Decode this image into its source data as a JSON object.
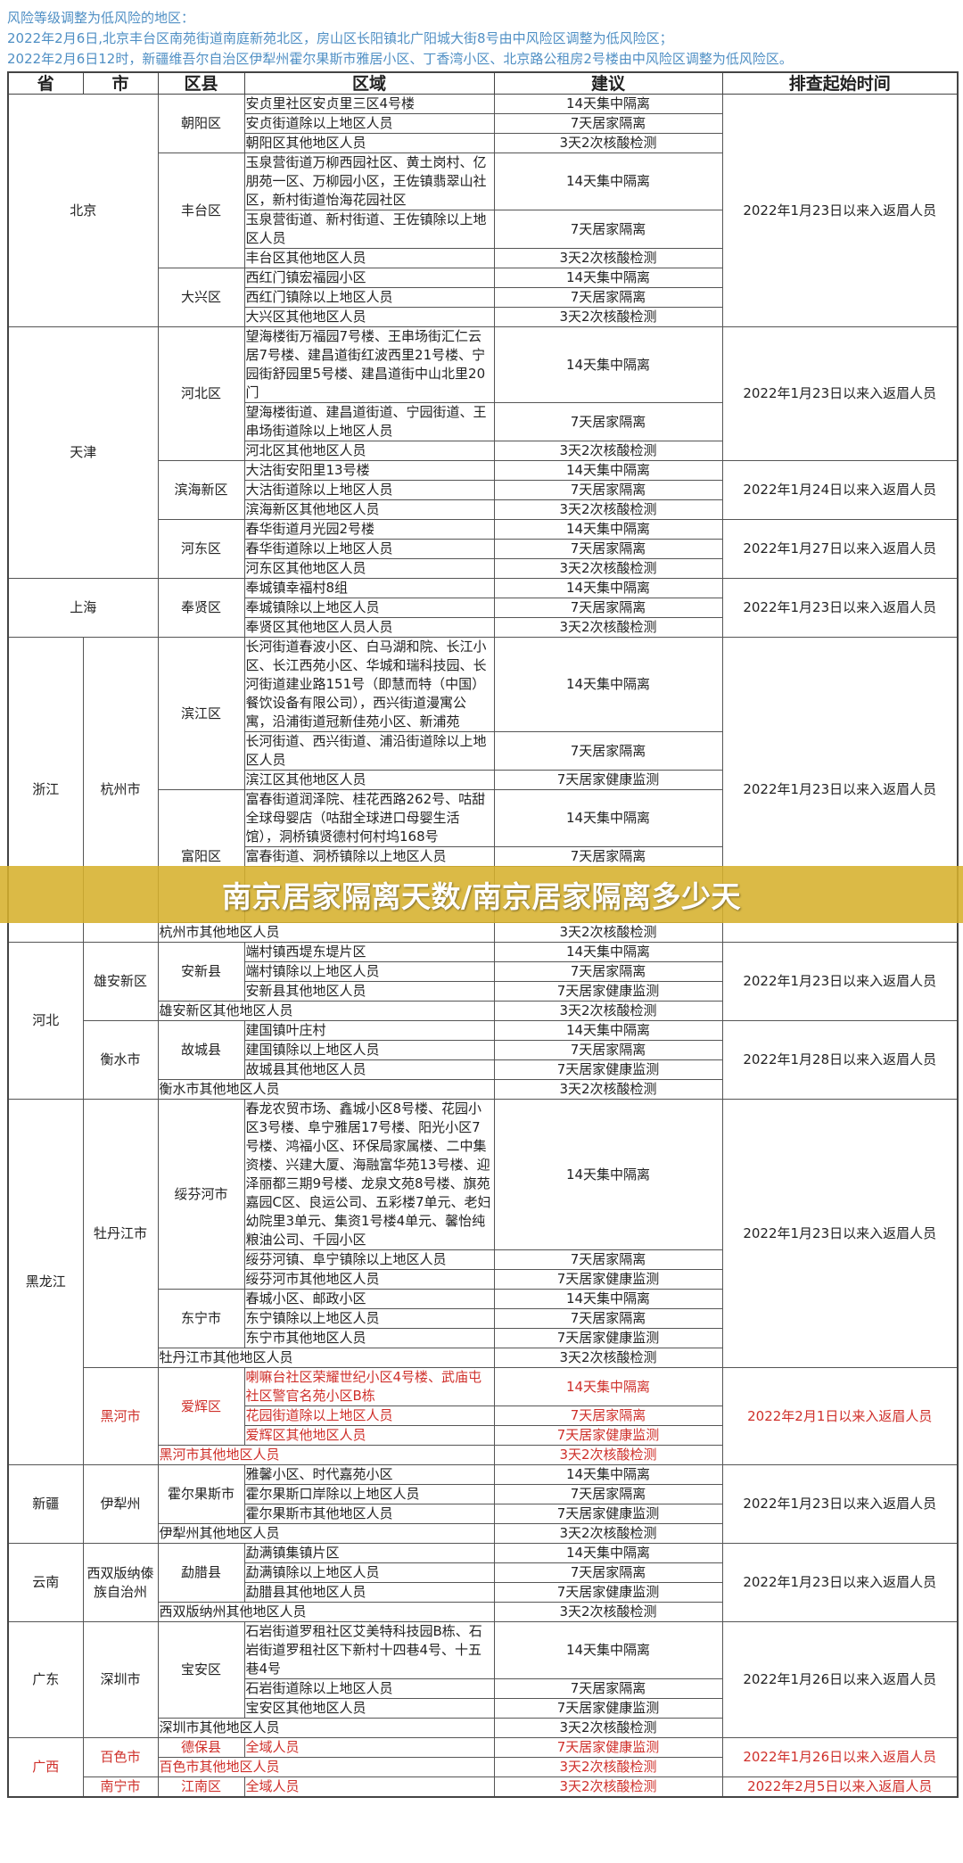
{
  "notice": {
    "lines": [
      "风险等级调整为低风险的地区：",
      "2022年2月6日,北京丰台区南苑街道南庭新苑北区，房山区长阳镇北广阳城大街8号由中风险区调整为低风险区；",
      "2022年2月6日12时，新疆维吾尔自治区伊犁州霍尔果斯市雅居小区、丁香湾小区、北京路公租房2号楼由中风险区调整为低风险区。"
    ]
  },
  "banner": {
    "title": "南京居家隔离天数/南京居家隔离多少天"
  },
  "colors": {
    "notice": "#4f8fc4",
    "red": "#cf2f2a",
    "banner": "#d6b02c"
  },
  "table": {
    "headers": [
      "省",
      "市",
      "区县",
      "区域",
      "建议",
      "排查起始时间"
    ],
    "rows": [
      {
        "cells": [
          {
            "t": "北京",
            "k": "prov",
            "rs": 9,
            "cs": 2
          },
          {
            "t": "朝阳区",
            "k": "dist",
            "rs": 3
          },
          {
            "t": "安贞里社区安贞里三区4号楼",
            "k": "area"
          },
          {
            "t": "14天集中隔离",
            "k": "adv"
          },
          {
            "t": "2022年1月23日以来入返眉人员",
            "k": "time",
            "rs": 9
          }
        ]
      },
      {
        "cells": [
          {
            "t": "安贞街道除以上地区人员",
            "k": "area"
          },
          {
            "t": "7天居家隔离",
            "k": "adv"
          }
        ]
      },
      {
        "cells": [
          {
            "t": "朝阳区其他地区人员",
            "k": "area"
          },
          {
            "t": "3天2次核酸检测",
            "k": "adv"
          }
        ]
      },
      {
        "cells": [
          {
            "t": "丰台区",
            "k": "dist",
            "rs": 3
          },
          {
            "t": "玉泉营街道万柳西园社区、黄土岗村、亿朋苑一区、万柳园小区，王佐镇翡翠山社区，新村街道怡海花园社区",
            "k": "area"
          },
          {
            "t": "14天集中隔离",
            "k": "adv"
          }
        ]
      },
      {
        "cells": [
          {
            "t": "玉泉营街道、新村街道、王佐镇除以上地区人员",
            "k": "area"
          },
          {
            "t": "7天居家隔离",
            "k": "adv"
          }
        ]
      },
      {
        "cells": [
          {
            "t": "丰台区其他地区人员",
            "k": "area"
          },
          {
            "t": "3天2次核酸检测",
            "k": "adv"
          }
        ]
      },
      {
        "cells": [
          {
            "t": "大兴区",
            "k": "dist",
            "rs": 3
          },
          {
            "t": "西红门镇宏福园小区",
            "k": "area"
          },
          {
            "t": "14天集中隔离",
            "k": "adv"
          }
        ]
      },
      {
        "cells": [
          {
            "t": "西红门镇除以上地区人员",
            "k": "area"
          },
          {
            "t": "7天居家隔离",
            "k": "adv"
          }
        ]
      },
      {
        "cells": [
          {
            "t": "大兴区其他地区人员",
            "k": "area"
          },
          {
            "t": "3天2次核酸检测",
            "k": "adv"
          }
        ]
      },
      {
        "cells": [
          {
            "t": "天津",
            "k": "prov",
            "rs": 9,
            "cs": 2
          },
          {
            "t": "河北区",
            "k": "dist",
            "rs": 3
          },
          {
            "t": "望海楼街万福园7号楼、王串场街汇仁云居7号楼、建昌道街红波西里21号楼、宁园街舒园里5号楼、建昌道街中山北里20门",
            "k": "area"
          },
          {
            "t": "14天集中隔离",
            "k": "adv"
          },
          {
            "t": "2022年1月23日以来入返眉人员",
            "k": "time",
            "rs": 3
          }
        ]
      },
      {
        "cells": [
          {
            "t": "望海楼街道、建昌道街道、宁园街道、王串场街道除以上地区人员",
            "k": "area"
          },
          {
            "t": "7天居家隔离",
            "k": "adv"
          }
        ]
      },
      {
        "cells": [
          {
            "t": "河北区其他地区人员",
            "k": "area"
          },
          {
            "t": "3天2次核酸检测",
            "k": "adv"
          }
        ]
      },
      {
        "cells": [
          {
            "t": "滨海新区",
            "k": "dist",
            "rs": 3
          },
          {
            "t": "大沽街安阳里13号楼",
            "k": "area"
          },
          {
            "t": "14天集中隔离",
            "k": "adv"
          },
          {
            "t": "2022年1月24日以来入返眉人员",
            "k": "time",
            "rs": 3
          }
        ]
      },
      {
        "cells": [
          {
            "t": "大沽街道除以上地区人员",
            "k": "area"
          },
          {
            "t": "7天居家隔离",
            "k": "adv"
          }
        ]
      },
      {
        "cells": [
          {
            "t": "滨海新区其他地区人员",
            "k": "area"
          },
          {
            "t": "3天2次核酸检测",
            "k": "adv"
          }
        ]
      },
      {
        "cells": [
          {
            "t": "河东区",
            "k": "dist",
            "rs": 3
          },
          {
            "t": "春华街道月光园2号楼",
            "k": "area"
          },
          {
            "t": "14天集中隔离",
            "k": "adv"
          },
          {
            "t": "2022年1月27日以来入返眉人员",
            "k": "time",
            "rs": 3
          }
        ]
      },
      {
        "cells": [
          {
            "t": "春华街道除以上地区人员",
            "k": "area"
          },
          {
            "t": "7天居家隔离",
            "k": "adv"
          }
        ]
      },
      {
        "cells": [
          {
            "t": "河东区其他地区人员",
            "k": "area"
          },
          {
            "t": "3天2次核酸检测",
            "k": "adv"
          }
        ]
      },
      {
        "cells": [
          {
            "t": "上海",
            "k": "prov",
            "rs": 3,
            "cs": 2
          },
          {
            "t": "奉贤区",
            "k": "dist",
            "rs": 3
          },
          {
            "t": "奉城镇幸福村8组",
            "k": "area"
          },
          {
            "t": "14天集中隔离",
            "k": "adv"
          },
          {
            "t": "2022年1月23日以来入返眉人员",
            "k": "time",
            "rs": 3
          }
        ]
      },
      {
        "cells": [
          {
            "t": "奉城镇除以上地区人员",
            "k": "area"
          },
          {
            "t": "7天居家隔离",
            "k": "adv"
          }
        ]
      },
      {
        "cells": [
          {
            "t": "奉贤区其他地区人员人员",
            "k": "area"
          },
          {
            "t": "3天2次核酸检测",
            "k": "adv"
          }
        ]
      },
      {
        "cells": [
          {
            "t": "浙江",
            "k": "prov",
            "rs": 7
          },
          {
            "t": "杭州市",
            "k": "city",
            "rs": 7
          },
          {
            "t": "滨江区",
            "k": "dist",
            "rs": 3
          },
          {
            "t": "长河街道春波小区、白马湖和院、长江小区、长江西苑小区、华城和瑞科技园、长河街道建业路151号（即慧而特（中国）餐饮设备有限公司），西兴街道漫寓公寓，沿浦街道冠新佳苑小区、新浦苑",
            "k": "area"
          },
          {
            "t": "14天集中隔离",
            "k": "adv"
          },
          {
            "t": "2022年1月23日以来入返眉人员",
            "k": "time",
            "rs": 7
          }
        ]
      },
      {
        "cells": [
          {
            "t": "长河街道、西兴街道、浦沿街道除以上地区人员",
            "k": "area"
          },
          {
            "t": "7天居家隔离",
            "k": "adv"
          }
        ]
      },
      {
        "cells": [
          {
            "t": "滨江区其他地区人员",
            "k": "area"
          },
          {
            "t": "7天居家健康监测",
            "k": "adv"
          }
        ]
      },
      {
        "cells": [
          {
            "t": "富阳区",
            "k": "dist",
            "rs": 3
          },
          {
            "t": "富春街道润泽院、桂花西路262号、咕甜全球母婴店（咕甜全球进口母婴生活馆），洞桥镇贤德村何村坞168号",
            "k": "area"
          },
          {
            "t": "14天集中隔离",
            "k": "adv"
          }
        ]
      },
      {
        "cells": [
          {
            "t": "富春街道、洞桥镇除以上地区人员",
            "k": "area"
          },
          {
            "t": "7天居家隔离",
            "k": "adv"
          }
        ]
      },
      {
        "cells": [
          {
            "t": "",
            "k": "area"
          },
          {
            "t": "",
            "k": "adv"
          }
        ]
      },
      {
        "cells": [
          {
            "t": "杭州市其他地区人员",
            "k": "area",
            "cs": 2
          },
          {
            "t": "3天2次核酸检测",
            "k": "adv"
          }
        ]
      },
      {
        "cells": [
          {
            "t": "河北",
            "k": "prov",
            "rs": 8
          },
          {
            "t": "雄安新区",
            "k": "city",
            "rs": 4
          },
          {
            "t": "安新县",
            "k": "dist",
            "rs": 3
          },
          {
            "t": "端村镇西堤东堤片区",
            "k": "area"
          },
          {
            "t": "14天集中隔离",
            "k": "adv"
          },
          {
            "t": "2022年1月23日以来入返眉人员",
            "k": "time",
            "rs": 4
          }
        ]
      },
      {
        "cells": [
          {
            "t": "端村镇除以上地区人员",
            "k": "area"
          },
          {
            "t": "7天居家隔离",
            "k": "adv"
          }
        ]
      },
      {
        "cells": [
          {
            "t": "安新县其他地区人员",
            "k": "area"
          },
          {
            "t": "7天居家健康监测",
            "k": "adv"
          }
        ]
      },
      {
        "cells": [
          {
            "t": "雄安新区其他地区人员",
            "k": "area",
            "cs": 2
          },
          {
            "t": "3天2次核酸检测",
            "k": "adv"
          }
        ]
      },
      {
        "cells": [
          {
            "t": "衡水市",
            "k": "city",
            "rs": 4
          },
          {
            "t": "故城县",
            "k": "dist",
            "rs": 3
          },
          {
            "t": "建国镇叶庄村",
            "k": "area"
          },
          {
            "t": "14天集中隔离",
            "k": "adv"
          },
          {
            "t": "2022年1月28日以来入返眉人员",
            "k": "time",
            "rs": 4
          }
        ]
      },
      {
        "cells": [
          {
            "t": "建国镇除以上地区人员",
            "k": "area"
          },
          {
            "t": "7天居家隔离",
            "k": "adv"
          }
        ]
      },
      {
        "cells": [
          {
            "t": "故城县其他地区人员",
            "k": "area"
          },
          {
            "t": "7天居家健康监测",
            "k": "adv"
          }
        ]
      },
      {
        "cells": [
          {
            "t": "衡水市其他地区人员",
            "k": "area",
            "cs": 2
          },
          {
            "t": "3天2次核酸检测",
            "k": "adv"
          }
        ]
      },
      {
        "cells": [
          {
            "t": "黑龙江",
            "k": "prov",
            "rs": 11
          },
          {
            "t": "牡丹江市",
            "k": "city",
            "rs": 7
          },
          {
            "t": "绥芬河市",
            "k": "dist",
            "rs": 3
          },
          {
            "t": "春龙农贸市场、鑫城小区8号楼、花园小区3号楼、阜宁雅居17号楼、阳光小区7号楼、鸿福小区、环保局家属楼、二中集资楼、兴建大厦、海融富华苑13号楼、迎泽丽都三期9号楼、龙泉文苑8号楼、旗苑嘉园C区、良运公司、五彩楼7单元、老妇幼院里3单元、集资1号楼4单元、馨怡纯粮油公司、千园小区",
            "k": "area"
          },
          {
            "t": "14天集中隔离",
            "k": "adv"
          },
          {
            "t": "2022年1月23日以来入返眉人员",
            "k": "time",
            "rs": 7
          }
        ]
      },
      {
        "cells": [
          {
            "t": "绥芬河镇、阜宁镇除以上地区人员",
            "k": "area"
          },
          {
            "t": "7天居家隔离",
            "k": "adv"
          }
        ]
      },
      {
        "cells": [
          {
            "t": "绥芬河市其他地区人员",
            "k": "area"
          },
          {
            "t": "7天居家健康监测",
            "k": "adv"
          }
        ]
      },
      {
        "cells": [
          {
            "t": "东宁市",
            "k": "dist",
            "rs": 3
          },
          {
            "t": "春城小区、邮政小区",
            "k": "area"
          },
          {
            "t": "14天集中隔离",
            "k": "adv"
          }
        ]
      },
      {
        "cells": [
          {
            "t": "东宁镇除以上地区人员",
            "k": "area"
          },
          {
            "t": "7天居家隔离",
            "k": "adv"
          }
        ]
      },
      {
        "cells": [
          {
            "t": "东宁市其他地区人员",
            "k": "area"
          },
          {
            "t": "7天居家健康监测",
            "k": "adv"
          }
        ]
      },
      {
        "cells": [
          {
            "t": "牡丹江市其他地区人员",
            "k": "area",
            "cs": 2
          },
          {
            "t": "3天2次核酸检测",
            "k": "adv"
          }
        ]
      },
      {
        "red": true,
        "cells": [
          {
            "t": "黑河市",
            "k": "city",
            "rs": 4
          },
          {
            "t": "爱辉区",
            "k": "dist",
            "rs": 3
          },
          {
            "t": "喇嘛台社区荣耀世纪小区4号楼、武庙屯社区警官名苑小区B栋",
            "k": "area"
          },
          {
            "t": "14天集中隔离",
            "k": "adv"
          },
          {
            "t": "2022年2月1日以来入返眉人员",
            "k": "time",
            "rs": 4
          }
        ]
      },
      {
        "red": true,
        "cells": [
          {
            "t": "花园街道除以上地区人员",
            "k": "area"
          },
          {
            "t": "7天居家隔离",
            "k": "adv"
          }
        ]
      },
      {
        "red": true,
        "cells": [
          {
            "t": "爱辉区其他地区人员",
            "k": "area"
          },
          {
            "t": "7天居家健康监测",
            "k": "adv"
          }
        ]
      },
      {
        "red": true,
        "cells": [
          {
            "t": "黑河市其他地区人员",
            "k": "area",
            "cs": 2
          },
          {
            "t": "3天2次核酸检测",
            "k": "adv"
          }
        ]
      },
      {
        "cells": [
          {
            "t": "新疆",
            "k": "prov",
            "rs": 4
          },
          {
            "t": "伊犁州",
            "k": "city",
            "rs": 4
          },
          {
            "t": "霍尔果斯市",
            "k": "dist",
            "rs": 3
          },
          {
            "t": "雅馨小区、时代嘉苑小区",
            "k": "area"
          },
          {
            "t": "14天集中隔离",
            "k": "adv"
          },
          {
            "t": "2022年1月23日以来入返眉人员",
            "k": "time",
            "rs": 4
          }
        ]
      },
      {
        "cells": [
          {
            "t": "霍尔果斯口岸除以上地区人员",
            "k": "area"
          },
          {
            "t": "7天居家隔离",
            "k": "adv"
          }
        ]
      },
      {
        "cells": [
          {
            "t": "霍尔果斯市其他地区人员",
            "k": "area"
          },
          {
            "t": "7天居家健康监测",
            "k": "adv"
          }
        ]
      },
      {
        "cells": [
          {
            "t": "伊犁州其他地区人员",
            "k": "area",
            "cs": 2
          },
          {
            "t": "3天2次核酸检测",
            "k": "adv"
          }
        ]
      },
      {
        "cells": [
          {
            "t": "云南",
            "k": "prov",
            "rs": 4
          },
          {
            "t": "西双版纳傣族自治州",
            "k": "city",
            "rs": 4
          },
          {
            "t": "勐腊县",
            "k": "dist",
            "rs": 3
          },
          {
            "t": "勐满镇集镇片区",
            "k": "area"
          },
          {
            "t": "14天集中隔离",
            "k": "adv"
          },
          {
            "t": "2022年1月23日以来入返眉人员",
            "k": "time",
            "rs": 4
          }
        ]
      },
      {
        "cells": [
          {
            "t": "勐满镇除以上地区人员",
            "k": "area"
          },
          {
            "t": "7天居家隔离",
            "k": "adv"
          }
        ]
      },
      {
        "cells": [
          {
            "t": "勐腊县其他地区人员",
            "k": "area"
          },
          {
            "t": "7天居家健康监测",
            "k": "adv"
          }
        ]
      },
      {
        "cells": [
          {
            "t": "西双版纳州其他地区人员",
            "k": "area",
            "cs": 2
          },
          {
            "t": "3天2次核酸检测",
            "k": "adv"
          }
        ]
      },
      {
        "cells": [
          {
            "t": "广东",
            "k": "prov",
            "rs": 4
          },
          {
            "t": "深圳市",
            "k": "city",
            "rs": 4
          },
          {
            "t": "宝安区",
            "k": "dist",
            "rs": 3
          },
          {
            "t": "石岩街道罗租社区艾美特科技园B栋、石岩街道罗租社区下新村十四巷4号、十五巷4号",
            "k": "area"
          },
          {
            "t": "14天集中隔离",
            "k": "adv"
          },
          {
            "t": "2022年1月26日以来入返眉人员",
            "k": "time",
            "rs": 4
          }
        ]
      },
      {
        "cells": [
          {
            "t": "石岩街道除以上地区人员",
            "k": "area"
          },
          {
            "t": "7天居家隔离",
            "k": "adv"
          }
        ]
      },
      {
        "cells": [
          {
            "t": "宝安区其他地区人员",
            "k": "area"
          },
          {
            "t": "7天居家健康监测",
            "k": "adv"
          }
        ]
      },
      {
        "cells": [
          {
            "t": "深圳市其他地区人员",
            "k": "area",
            "cs": 2
          },
          {
            "t": "3天2次核酸检测",
            "k": "adv"
          }
        ]
      },
      {
        "red": true,
        "cells": [
          {
            "t": "广西",
            "k": "prov",
            "rs": 3
          },
          {
            "t": "百色市",
            "k": "city",
            "rs": 2
          },
          {
            "t": "德保县",
            "k": "dist"
          },
          {
            "t": "全域人员",
            "k": "area"
          },
          {
            "t": "7天居家健康监测",
            "k": "adv"
          },
          {
            "t": "2022年1月26日以来入返眉人员",
            "k": "time",
            "rs": 2
          }
        ]
      },
      {
        "red": true,
        "cells": [
          {
            "t": "百色市其他地区人员",
            "k": "area",
            "cs": 2
          },
          {
            "t": "3天2次核酸检测",
            "k": "adv"
          }
        ]
      },
      {
        "red": true,
        "cells": [
          {
            "t": "南宁市",
            "k": "city"
          },
          {
            "t": "江南区",
            "k": "dist"
          },
          {
            "t": "全域人员",
            "k": "area"
          },
          {
            "t": "3天2次核酸检测",
            "k": "adv"
          },
          {
            "t": "2022年2月5日以来入返眉人员",
            "k": "time"
          }
        ]
      }
    ]
  }
}
